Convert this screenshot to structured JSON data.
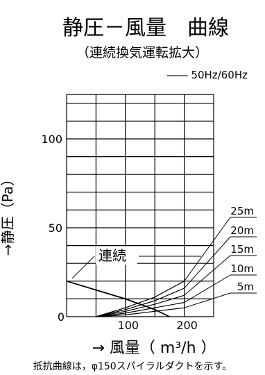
{
  "chart_data": {
    "type": "line",
    "title": "静圧－風量　曲線",
    "subtitle": "（連続換気運転拡大）",
    "legend": "―― 50Hz/60Hz",
    "xlabel": "→ 風量（ m³/h ）",
    "ylabel": "→静圧（Pa）",
    "xlim": [
      0,
      250
    ],
    "ylim": [
      0,
      125
    ],
    "x_ticks": [
      "0",
      "100",
      "200"
    ],
    "x_tick_values": [
      0,
      100,
      200
    ],
    "y_ticks": [
      "100",
      "50"
    ],
    "y_tick_values": [
      100,
      50
    ],
    "grid": true,
    "series": [
      {
        "name": "連続",
        "x": [
          0,
          50,
          100,
          150,
          175
        ],
        "y": [
          20,
          15,
          10,
          4,
          0
        ]
      },
      {
        "name": "25m",
        "x": [
          50,
          100,
          150,
          200
        ],
        "y": [
          0,
          5,
          11,
          20
        ]
      },
      {
        "name": "20m",
        "x": [
          50,
          100,
          150,
          200
        ],
        "y": [
          0,
          4,
          9,
          16
        ]
      },
      {
        "name": "15m",
        "x": [
          50,
          100,
          150,
          200
        ],
        "y": [
          0,
          3,
          7,
          12
        ]
      },
      {
        "name": "10m",
        "x": [
          50,
          100,
          150,
          200
        ],
        "y": [
          0,
          2,
          5,
          8
        ]
      },
      {
        "name": "5m",
        "x": [
          50,
          100,
          150,
          200
        ],
        "y": [
          0,
          1,
          3,
          5
        ]
      }
    ],
    "note": "抵抗曲線は，φ150スパイラルダクトを示す。"
  }
}
